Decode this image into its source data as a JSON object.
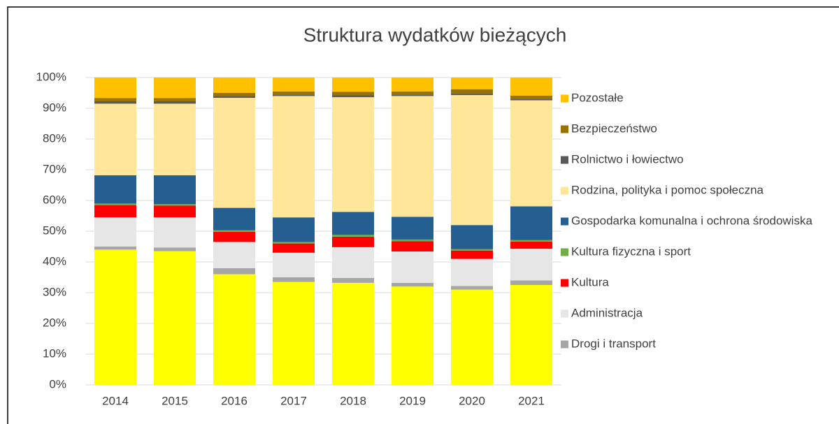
{
  "chart_data": {
    "type": "stacked_bar",
    "title": "Struktura wydatków bieżących",
    "categories": [
      "2014",
      "2015",
      "2016",
      "2017",
      "2018",
      "2019",
      "2020",
      "2021"
    ],
    "ylim": [
      0,
      100
    ],
    "yticks": [
      {
        "value": 0,
        "label": "0%"
      },
      {
        "value": 10,
        "label": "10%"
      },
      {
        "value": 20,
        "label": "20%"
      },
      {
        "value": 30,
        "label": "30%"
      },
      {
        "value": 40,
        "label": "40%"
      },
      {
        "value": 50,
        "label": "50%"
      },
      {
        "value": 60,
        "label": "60%"
      },
      {
        "value": 70,
        "label": "70%"
      },
      {
        "value": 80,
        "label": "80%"
      },
      {
        "value": 90,
        "label": "90%"
      },
      {
        "value": 100,
        "label": "100%"
      }
    ],
    "grid": true,
    "legend": "right",
    "series": [
      {
        "name": null,
        "color": "#ffff00",
        "values": [
          44,
          43.5,
          36,
          33.5,
          33.2,
          32,
          31,
          32.5
        ]
      },
      {
        "name": "Drogi i transport",
        "color": "#a6a6a6",
        "values": [
          1,
          1.2,
          2,
          1.5,
          1.6,
          1.2,
          1.2,
          1.5
        ]
      },
      {
        "name": "Administracja",
        "color": "#e7e6e6",
        "values": [
          9.5,
          9.8,
          8.5,
          8,
          10,
          10.2,
          8.8,
          10.3
        ]
      },
      {
        "name": "Kultura",
        "color": "#ff0000",
        "values": [
          4,
          3.8,
          3.3,
          3,
          3.4,
          3.3,
          2.7,
          2.3
        ]
      },
      {
        "name": "Kultura fizyczna i sport",
        "color": "#70ad47",
        "values": [
          0.5,
          0.5,
          0.5,
          0.5,
          0.6,
          0.6,
          0.5,
          0.5
        ]
      },
      {
        "name": "Gospodarka komunalna i ochrona środowiska",
        "color": "#255e91",
        "values": [
          9.2,
          9.4,
          7.3,
          8,
          7.5,
          7.4,
          7.8,
          11
        ]
      },
      {
        "name": "Rodzina, polityka i pomoc społeczna",
        "color": "#ffe699",
        "values": [
          23.3,
          23.3,
          35.8,
          39.5,
          37.3,
          39.3,
          42.3,
          34.5
        ]
      },
      {
        "name": "Rolnictwo i łowiectwo",
        "color": "#595959",
        "values": [
          0.8,
          0.8,
          0.6,
          0.5,
          0.6,
          0.5,
          0.5,
          0.5
        ]
      },
      {
        "name": "Bezpieczeństwo",
        "color": "#997300",
        "values": [
          1,
          1,
          1,
          1,
          1.2,
          1,
          1.4,
          1
        ]
      },
      {
        "name": "Pozostałe",
        "color": "#ffc000",
        "values": [
          6.7,
          6.7,
          5,
          4.5,
          4.6,
          4.5,
          3.8,
          5.9
        ]
      }
    ]
  }
}
